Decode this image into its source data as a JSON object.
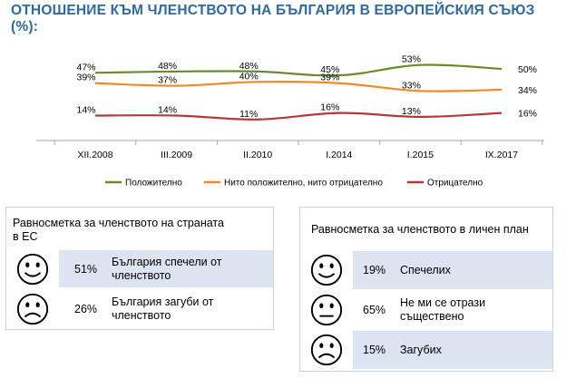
{
  "title": "ОТНОШЕНИЕ КЪМ ЧЛЕНСТВОТО НА БЪЛГАРИЯ В ЕВРОПЕЙСКИЯ СЪЮЗ (%):",
  "chart_data": {
    "type": "line",
    "categories": [
      "XII.2008",
      "III.2009",
      "II.2010",
      "I.2014",
      "I.2015",
      "IX.2017"
    ],
    "series": [
      {
        "name": "Положително",
        "values": [
          47,
          48,
          48,
          45,
          53,
          50
        ],
        "labels": [
          "47%",
          "48%",
          "48%",
          "45%",
          "53%",
          "50%"
        ],
        "color": "#6a8b2d"
      },
      {
        "name": "Нито положително, нито отрицателно",
        "values": [
          39,
          37,
          40,
          39,
          33,
          34
        ],
        "labels": [
          "39%",
          "37%",
          "40%",
          "39%",
          "33%",
          "34%"
        ],
        "color": "#f08a26"
      },
      {
        "name": "Отрицателно",
        "values": [
          14,
          14,
          11,
          16,
          13,
          16
        ],
        "labels": [
          "14%",
          "14%",
          "11%",
          "16%",
          "13%",
          "16%"
        ],
        "color": "#b23a3a"
      }
    ],
    "legend_position": "bottom",
    "grid": false
  },
  "left_table": {
    "title": "Равносметка за членството на страната в ЕС",
    "rows": [
      {
        "face": "happy-face-icon",
        "pct": "51%",
        "label": "България спечели от членството"
      },
      {
        "face": "sad-face-icon",
        "pct": "26%",
        "label": "България загуби от членството"
      }
    ]
  },
  "right_table": {
    "title": "Равносметка за членството в личен план",
    "rows": [
      {
        "face": "happy-face-icon",
        "pct": "19%",
        "label": "Спечелих"
      },
      {
        "face": "neutral-face-icon",
        "pct": "65%",
        "label": "Не ми се отрази съществено"
      },
      {
        "face": "sad-face-icon",
        "pct": "15%",
        "label": "Загубих"
      }
    ]
  },
  "colors": {
    "title": "#2a6aa8",
    "row_shade": "#dce4f2",
    "box_border": "#c9d3e3"
  }
}
